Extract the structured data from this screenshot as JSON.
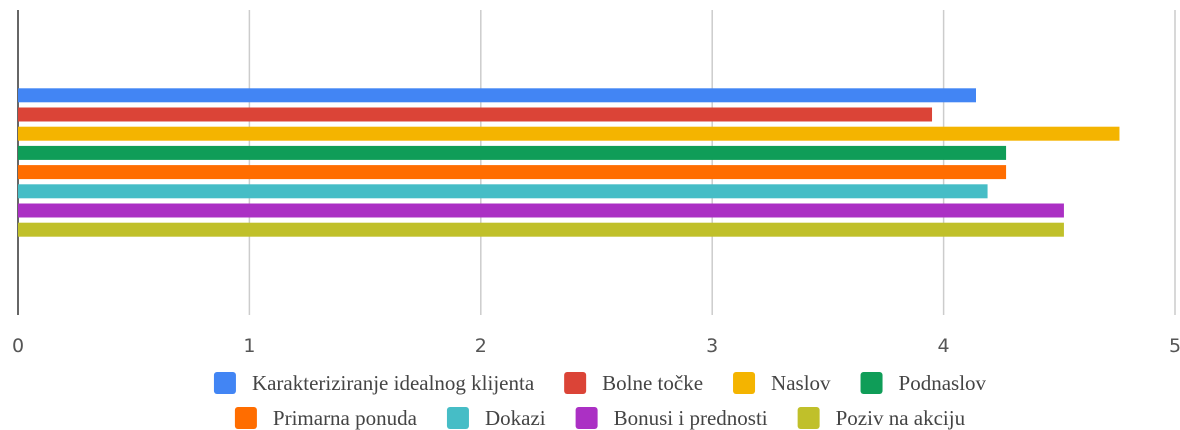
{
  "chart_data": {
    "type": "hbar",
    "series": [
      {
        "name": "Karakteriziranje idealnog klijenta",
        "color": "#4285f4",
        "values": [
          4.14
        ]
      },
      {
        "name": "Bolne točke",
        "color": "#db4437",
        "values": [
          3.95
        ]
      },
      {
        "name": "Naslov",
        "color": "#f4b400",
        "values": [
          4.76
        ]
      },
      {
        "name": "Podnaslov",
        "color": "#0f9d58",
        "values": [
          4.27
        ]
      },
      {
        "name": "Primarna ponuda",
        "color": "#ff6d00",
        "values": [
          4.27
        ]
      },
      {
        "name": "Dokazi",
        "color": "#46bdc6",
        "values": [
          4.19
        ]
      },
      {
        "name": "Bonusi i prednosti",
        "color": "#ab30c4",
        "values": [
          4.52
        ]
      },
      {
        "name": "Poziv na akciju",
        "color": "#c0c02a",
        "values": [
          4.52
        ]
      }
    ],
    "xlim": [
      0,
      5
    ],
    "xticks": [
      0,
      1,
      2,
      3,
      4,
      5
    ],
    "grid": true,
    "legend": "bottom"
  }
}
